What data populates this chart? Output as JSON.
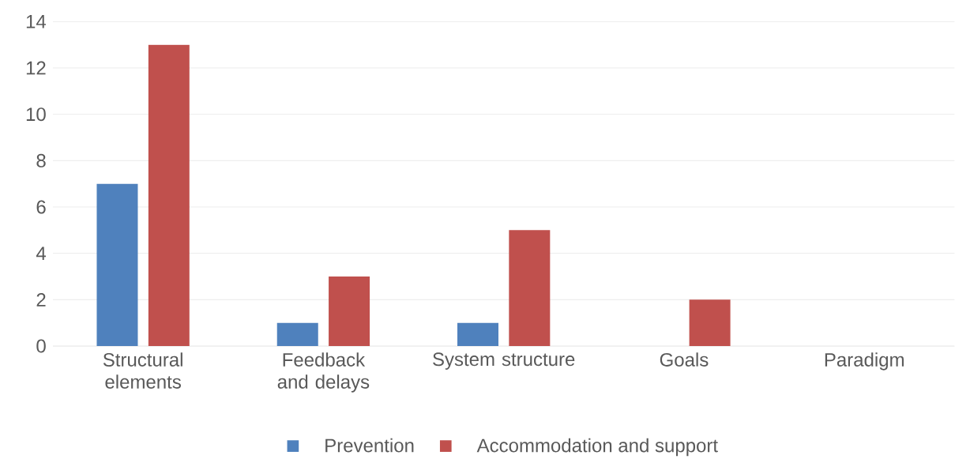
{
  "chart_data": {
    "type": "bar",
    "categories": [
      "Structural elements",
      "Feedback and delays",
      "System structure",
      "Goals",
      "Paradigm"
    ],
    "series": [
      {
        "name": "Prevention",
        "color": "#4f81bd",
        "values": [
          7,
          1,
          1,
          0,
          0
        ]
      },
      {
        "name": "Accommodation and support",
        "color": "#c0504d",
        "values": [
          13,
          3,
          5,
          2,
          0
        ]
      }
    ],
    "ylim": [
      0,
      14
    ],
    "yticks": [
      0,
      2,
      4,
      6,
      8,
      10,
      12,
      14
    ],
    "grid": "y",
    "legend": "bottom"
  }
}
